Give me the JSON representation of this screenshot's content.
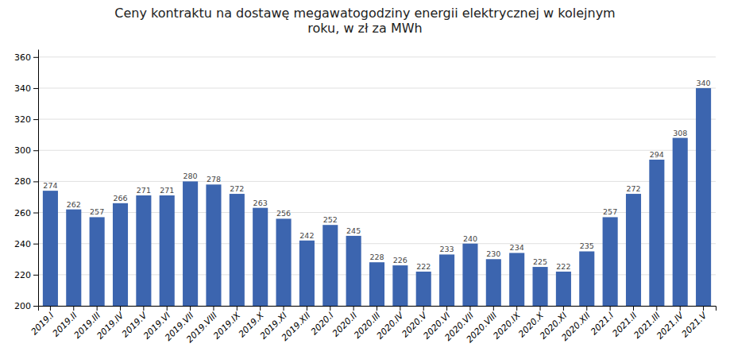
{
  "chart_data": {
    "type": "bar",
    "title": "Ceny kontraktu na dostawę megawatogodziny energii elektrycznej w kolejnym\nroku, w zł za MWh",
    "categories": [
      "2019.I",
      "2019.II",
      "2019.III",
      "2019.IV",
      "2019.V",
      "2019.VI",
      "2019.VII",
      "2019.VIII",
      "2019.IX",
      "2019.X",
      "2019.XI",
      "2019.XII",
      "2020.I",
      "2020.II",
      "2020.III",
      "2020.IV",
      "2020.V",
      "2020.VI",
      "2020.VII",
      "2020.VIII",
      "2020.IX",
      "2020.X",
      "2020.XI",
      "2020.XII",
      "2021.I",
      "2021.II",
      "2021.III",
      "2021.IV",
      "2021.V"
    ],
    "values": [
      274,
      262,
      257,
      266,
      271,
      271,
      280,
      278,
      272,
      263,
      256,
      242,
      252,
      245,
      228,
      226,
      222,
      233,
      240,
      230,
      234,
      225,
      222,
      235,
      257,
      272,
      294,
      308,
      340
    ],
    "color": "#3C65AF",
    "ylim": [
      200,
      365
    ],
    "yticks": [
      200,
      220,
      240,
      260,
      280,
      300,
      320,
      340,
      360
    ],
    "grid": true,
    "data_labels": true
  }
}
